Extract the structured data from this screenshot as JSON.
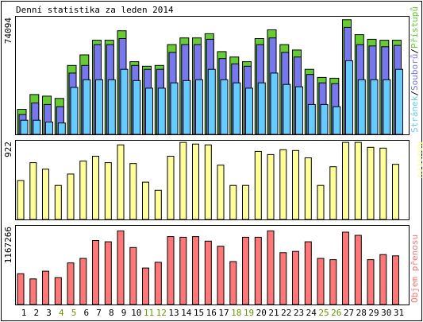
{
  "title": "Denní statistika za leden 2014",
  "colors": {
    "hits": "#66cc33",
    "files": "#7777ee",
    "pages": "#66ccff",
    "visits": "#ffff99",
    "volume": "#ff7777",
    "weekday_label": "#000000",
    "weekend_label": "#669900",
    "frame": "#000000",
    "background": "#ffffff"
  },
  "chart_data": [
    {
      "type": "bar",
      "panel": "top",
      "y_max_label": "74094",
      "ylim": [
        0,
        74094
      ],
      "categories": [
        "1",
        "2",
        "3",
        "4",
        "5",
        "6",
        "7",
        "8",
        "9",
        "10",
        "11",
        "12",
        "13",
        "14",
        "15",
        "16",
        "17",
        "18",
        "19",
        "20",
        "21",
        "22",
        "23",
        "24",
        "25",
        "26",
        "27",
        "28",
        "29",
        "30",
        "31"
      ],
      "weekend_days": [
        "4",
        "5",
        "11",
        "12",
        "18",
        "19",
        "25",
        "26"
      ],
      "legend": {
        "pages": "Stránek",
        "files": "Souborů",
        "hits": "Přístupů",
        "separator": "/"
      },
      "series": [
        {
          "name": "Přístupů",
          "color_key": "hits",
          "values": [
            16100,
            25600,
            24600,
            23100,
            44300,
            51100,
            60500,
            60500,
            66600,
            46700,
            43800,
            44300,
            57700,
            62000,
            62000,
            64700,
            53200,
            49700,
            46700,
            61600,
            67200,
            57700,
            54200,
            41800,
            36600,
            36100,
            73700,
            64100,
            61100,
            60500,
            60500
          ]
        },
        {
          "name": "Souborů",
          "color_key": "files",
          "values": [
            12800,
            20200,
            19200,
            17800,
            39400,
            44300,
            57700,
            57700,
            61600,
            44300,
            41800,
            41800,
            52700,
            57700,
            57700,
            61100,
            48700,
            45300,
            43800,
            57700,
            62000,
            52700,
            49700,
            38500,
            33100,
            32600,
            68800,
            57700,
            56800,
            56300,
            57200
          ]
        },
        {
          "name": "Stránek",
          "color_key": "pages",
          "values": [
            9100,
            9100,
            7900,
            7300,
            30200,
            35100,
            35100,
            35100,
            41800,
            34600,
            29700,
            29700,
            33100,
            34600,
            35100,
            41800,
            35100,
            33100,
            29700,
            33100,
            39400,
            32100,
            30600,
            19200,
            19200,
            17800,
            47300,
            35100,
            35100,
            35100,
            41800
          ]
        }
      ]
    },
    {
      "type": "bar",
      "panel": "middle",
      "y_max_label": "922",
      "ylim": [
        0,
        922
      ],
      "categories": [
        "1",
        "2",
        "3",
        "4",
        "5",
        "6",
        "7",
        "8",
        "9",
        "10",
        "11",
        "12",
        "13",
        "14",
        "15",
        "16",
        "17",
        "18",
        "19",
        "20",
        "21",
        "22",
        "23",
        "24",
        "25",
        "26",
        "27",
        "28",
        "29",
        "30",
        "31"
      ],
      "legend": {
        "name": "Návštěv"
      },
      "series": [
        {
          "name": "Návštěv",
          "color_key": "visits",
          "values": [
            480,
            700,
            620,
            420,
            560,
            720,
            780,
            700,
            920,
            690,
            460,
            360,
            780,
            950,
            930,
            920,
            670,
            420,
            420,
            840,
            800,
            860,
            850,
            760,
            420,
            650,
            950,
            950,
            890,
            880,
            680
          ]
        }
      ]
    },
    {
      "type": "bar",
      "panel": "bottom",
      "y_max_label": "1167266",
      "ylim": [
        0,
        1167266
      ],
      "categories": [
        "1",
        "2",
        "3",
        "4",
        "5",
        "6",
        "7",
        "8",
        "9",
        "10",
        "11",
        "12",
        "13",
        "14",
        "15",
        "16",
        "17",
        "18",
        "19",
        "20",
        "21",
        "22",
        "23",
        "24",
        "25",
        "26",
        "27",
        "28",
        "29",
        "30",
        "31"
      ],
      "legend": {
        "name": "Objem přenosu"
      },
      "series": [
        {
          "name": "Objem přenosu",
          "color_key": "volume",
          "values": [
            480000,
            400000,
            520000,
            420000,
            650000,
            720000,
            1000000,
            980000,
            1150000,
            890000,
            570000,
            660000,
            1060000,
            1050000,
            1060000,
            990000,
            910000,
            670000,
            1050000,
            1050000,
            1150000,
            810000,
            830000,
            980000,
            720000,
            700000,
            1130000,
            1080000,
            700000,
            780000,
            760000
          ]
        }
      ]
    }
  ]
}
